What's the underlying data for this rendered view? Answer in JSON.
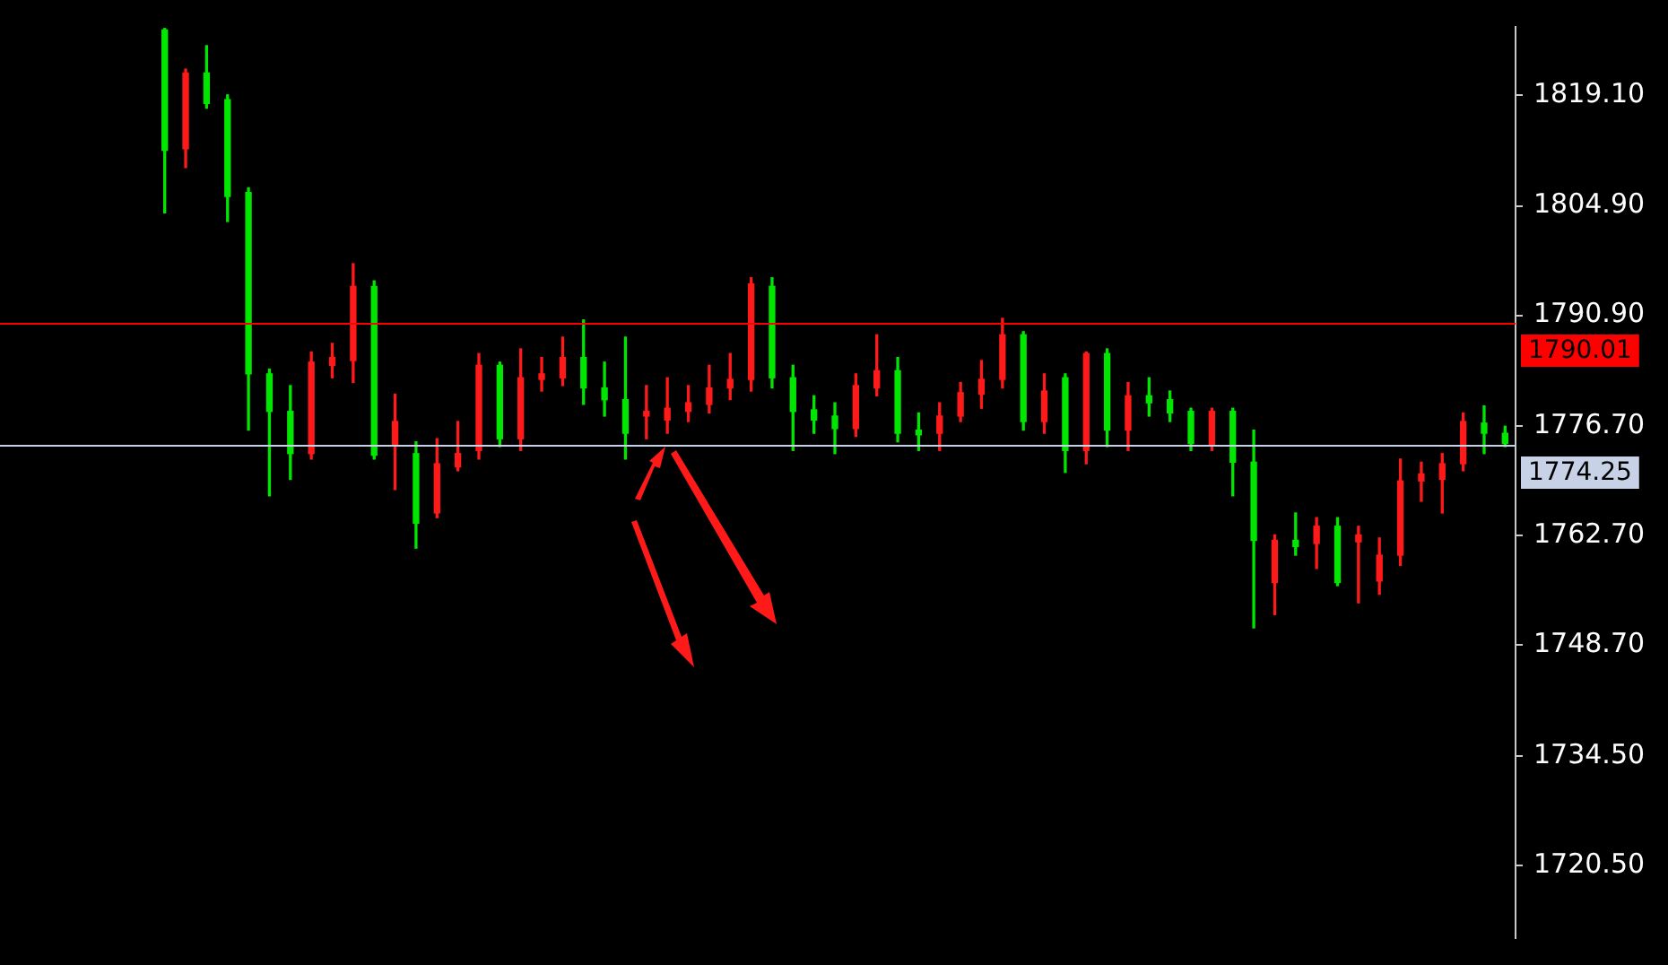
{
  "chart_data": {
    "type": "candlestick",
    "categories": [
      null,
      null,
      null,
      null,
      null,
      null,
      null,
      null,
      null,
      null,
      null,
      null,
      null,
      null,
      null,
      null,
      null,
      null,
      null,
      null,
      null,
      null,
      null,
      null,
      null,
      null,
      null,
      null,
      null,
      null,
      null,
      null,
      null,
      null,
      null,
      null,
      null,
      null,
      null,
      null,
      null,
      null,
      null,
      null,
      null,
      null,
      null,
      null,
      null,
      null,
      null,
      null,
      null,
      null,
      null,
      null,
      null,
      null,
      null,
      null,
      null,
      null,
      null,
      null,
      null
    ],
    "ohlc": [
      [
        1827.4,
        1827.6,
        1804.0,
        1812.0
      ],
      [
        1812.2,
        1822.4,
        1809.8,
        1821.9
      ],
      [
        1821.9,
        1825.4,
        1817.4,
        1818.0
      ],
      [
        1818.5,
        1819.1,
        1802.9,
        1806.1
      ],
      [
        1806.6,
        1807.2,
        1776.2,
        1783.4
      ],
      [
        1783.4,
        1784.0,
        1767.8,
        1778.6
      ],
      [
        1778.6,
        1781.9,
        1769.9,
        1773.2
      ],
      [
        1773.2,
        1786.2,
        1772.5,
        1784.9
      ],
      [
        1784.5,
        1787.3,
        1782.9,
        1785.5
      ],
      [
        1785.1,
        1797.5,
        1782.3,
        1794.6
      ],
      [
        1794.6,
        1795.3,
        1772.5,
        1773.0
      ],
      [
        1774.3,
        1780.8,
        1768.6,
        1777.3
      ],
      [
        1773.2,
        1774.7,
        1761.1,
        1764.3
      ],
      [
        1765.6,
        1775.1,
        1765.0,
        1771.9
      ],
      [
        1771.5,
        1777.3,
        1771.0,
        1773.2
      ],
      [
        1773.6,
        1786.0,
        1772.5,
        1784.5
      ],
      [
        1784.5,
        1784.9,
        1774.1,
        1775.1
      ],
      [
        1775.1,
        1786.6,
        1773.6,
        1782.9
      ],
      [
        1782.7,
        1785.5,
        1781.2,
        1783.4
      ],
      [
        1782.9,
        1788.1,
        1781.9,
        1785.5
      ],
      [
        1785.5,
        1790.3,
        1779.5,
        1781.6
      ],
      [
        1781.6,
        1784.9,
        1778.0,
        1780.1
      ],
      [
        1780.1,
        1788.1,
        1772.5,
        1775.8
      ],
      [
        1778.0,
        1781.9,
        1775.1,
        1778.6
      ],
      [
        1777.5,
        1782.9,
        1775.8,
        1779.0
      ],
      [
        1778.6,
        1781.9,
        1777.3,
        1779.7
      ],
      [
        1779.5,
        1784.5,
        1778.4,
        1781.6
      ],
      [
        1781.6,
        1786.0,
        1780.1,
        1782.7
      ],
      [
        1782.7,
        1795.7,
        1781.2,
        1794.9
      ],
      [
        1794.6,
        1795.7,
        1781.6,
        1782.9
      ],
      [
        1782.9,
        1784.5,
        1773.6,
        1778.6
      ],
      [
        1778.8,
        1780.6,
        1775.8,
        1777.5
      ],
      [
        1778.0,
        1779.7,
        1773.2,
        1776.4
      ],
      [
        1776.4,
        1783.4,
        1775.4,
        1781.9
      ],
      [
        1781.6,
        1788.4,
        1780.6,
        1783.8
      ],
      [
        1783.8,
        1785.5,
        1774.7,
        1775.8
      ],
      [
        1776.2,
        1778.4,
        1773.6,
        1775.6
      ],
      [
        1775.8,
        1779.7,
        1773.6,
        1778.0
      ],
      [
        1778.0,
        1782.3,
        1777.3,
        1781.0
      ],
      [
        1780.8,
        1785.1,
        1779.0,
        1782.7
      ],
      [
        1782.7,
        1790.5,
        1781.6,
        1788.4
      ],
      [
        1788.4,
        1788.8,
        1776.2,
        1777.3
      ],
      [
        1777.3,
        1783.4,
        1775.8,
        1781.2
      ],
      [
        1782.9,
        1783.4,
        1770.8,
        1773.6
      ],
      [
        1773.6,
        1786.2,
        1771.9,
        1786.0
      ],
      [
        1786.0,
        1786.6,
        1774.1,
        1776.2
      ],
      [
        1776.2,
        1782.3,
        1773.6,
        1780.6
      ],
      [
        1780.6,
        1782.9,
        1778.0,
        1779.7
      ],
      [
        1780.1,
        1781.2,
        1777.3,
        1778.4
      ],
      [
        1778.6,
        1779.0,
        1773.6,
        1774.5
      ],
      [
        1774.3,
        1779.0,
        1773.6,
        1778.6
      ],
      [
        1778.6,
        1779.0,
        1767.8,
        1772.1
      ],
      [
        1772.1,
        1776.2,
        1750.9,
        1762.1
      ],
      [
        1756.7,
        1762.8,
        1752.6,
        1762.1
      ],
      [
        1762.1,
        1765.6,
        1760.2,
        1761.3
      ],
      [
        1761.7,
        1765.0,
        1758.5,
        1763.9
      ],
      [
        1763.9,
        1765.0,
        1756.3,
        1756.7
      ],
      [
        1761.9,
        1763.9,
        1754.1,
        1762.8
      ],
      [
        1756.9,
        1762.4,
        1755.2,
        1760.2
      ],
      [
        1760.2,
        1772.5,
        1758.9,
        1769.7
      ],
      [
        1769.7,
        1772.1,
        1767.1,
        1770.6
      ],
      [
        1769.9,
        1773.2,
        1765.6,
        1771.9
      ],
      [
        1771.9,
        1778.4,
        1771.0,
        1777.3
      ],
      [
        1777.1,
        1779.3,
        1773.2,
        1775.8
      ],
      [
        1775.8,
        1776.7,
        1774.1,
        1774.5
      ]
    ],
    "colors": [
      "#00e600",
      "#ff1a1a",
      "#00e600",
      "#00e600",
      "#00e600",
      "#00e600",
      "#00e600",
      "#ff1a1a",
      "#ff1a1a",
      "#ff1a1a",
      "#00e600",
      "#ff1a1a",
      "#00e600",
      "#ff1a1a",
      "#ff1a1a",
      "#ff1a1a",
      "#00e600",
      "#ff1a1a",
      "#ff1a1a",
      "#ff1a1a",
      "#00e600",
      "#00e600",
      "#00e600",
      "#ff1a1a",
      "#ff1a1a",
      "#ff1a1a",
      "#ff1a1a",
      "#ff1a1a",
      "#ff1a1a",
      "#00e600",
      "#00e600",
      "#00e600",
      "#00e600",
      "#ff1a1a",
      "#ff1a1a",
      "#00e600",
      "#00e600",
      "#ff1a1a",
      "#ff1a1a",
      "#ff1a1a",
      "#ff1a1a",
      "#00e600",
      "#ff1a1a",
      "#00e600",
      "#ff1a1a",
      "#00e600",
      "#ff1a1a",
      "#00e600",
      "#00e600",
      "#00e600",
      "#ff1a1a",
      "#00e600",
      "#00e600",
      "#ff1a1a",
      "#00e600",
      "#ff1a1a",
      "#00e600",
      "#ff1a1a",
      "#ff1a1a",
      "#ff1a1a",
      "#ff1a1a",
      "#ff1a1a",
      "#ff1a1a",
      "#00e600",
      "#00e600"
    ],
    "ylim": [
      1711.2,
      1827.8
    ],
    "yticks": [
      {
        "value": 1819.1,
        "label": "1819.10"
      },
      {
        "value": 1804.9,
        "label": "1804.90"
      },
      {
        "value": 1790.9,
        "label": "1790.90"
      },
      {
        "value": 1776.7,
        "label": "1776.70"
      },
      {
        "value": 1762.7,
        "label": "1762.70"
      },
      {
        "value": 1748.7,
        "label": "1748.70"
      },
      {
        "value": 1734.5,
        "label": "1734.50"
      },
      {
        "value": 1720.5,
        "label": "1720.50"
      }
    ],
    "ref_lines": [
      {
        "axis": "y",
        "value": 1790.01,
        "label": "1790.01",
        "color": "#ff0000"
      },
      {
        "axis": "y",
        "value": 1774.25,
        "label": "1774.25",
        "color": "#c8d2e6"
      }
    ]
  }
}
